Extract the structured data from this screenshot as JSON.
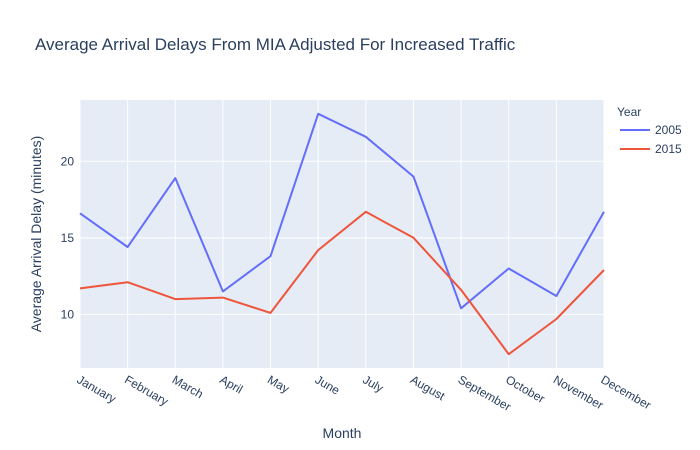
{
  "chart_data": {
    "type": "line",
    "title": "Average Arrival Delays From MIA Adjusted For Increased Traffic",
    "xlabel": "Month",
    "ylabel": "Average Arrival Delay (minutes)",
    "categories": [
      "January",
      "February",
      "March",
      "April",
      "May",
      "June",
      "July",
      "August",
      "September",
      "October",
      "November",
      "December"
    ],
    "yticks": [
      10,
      15,
      20
    ],
    "ylim": [
      6.5,
      24
    ],
    "legend_title": "Year",
    "legend_position": "top-right",
    "grid": true,
    "series": [
      {
        "name": "2005",
        "color": "#636efa",
        "values": [
          16.6,
          14.4,
          18.9,
          11.5,
          13.8,
          23.1,
          21.6,
          19.0,
          10.4,
          13.0,
          11.2,
          16.7
        ]
      },
      {
        "name": "2015",
        "color": "#ef553b",
        "values": [
          11.7,
          12.1,
          11.0,
          11.1,
          10.1,
          14.2,
          16.7,
          15.0,
          11.6,
          7.4,
          9.7,
          12.9
        ]
      }
    ]
  }
}
